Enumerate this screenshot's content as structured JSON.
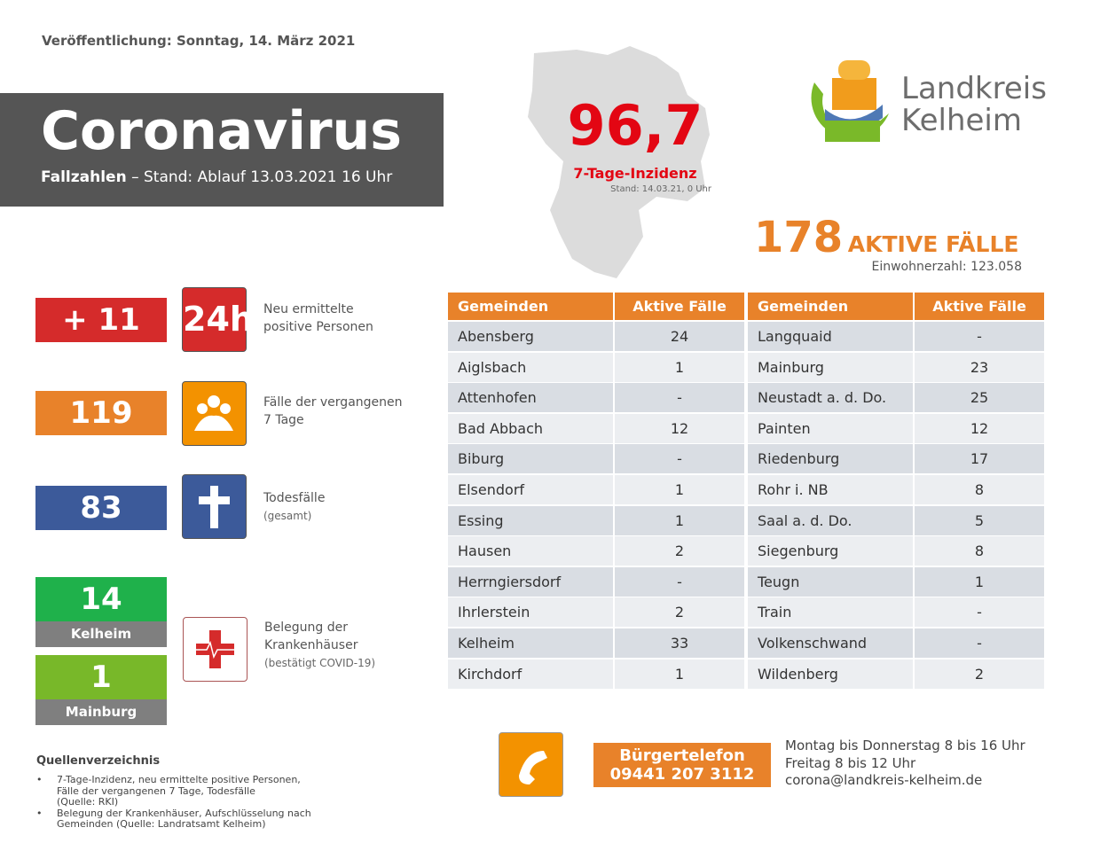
{
  "publication": "Veröffentlichung: Sonntag, 14. März 2021",
  "header": {
    "title": "Coronavirus",
    "subtitle_bold": "Fallzahlen",
    "subtitle": "– Stand: Ablauf 13.03.2021 16 Uhr"
  },
  "incidence": {
    "value": "96,7",
    "label": "7-Tage-Inzidenz",
    "stand": "Stand: 14.03.21, 0 Uhr"
  },
  "logo": {
    "line1": "Landkreis",
    "line2": "Kelheim"
  },
  "active": {
    "value": "178",
    "label": "AKTIVE FÄLLE",
    "population": "Einwohnerzahl: 123.058"
  },
  "stats": [
    {
      "value": "+ 11",
      "icon": "24h",
      "text": [
        "Neu ermittelte",
        "positive Personen"
      ]
    },
    {
      "value": "119",
      "text": [
        "Fälle der vergangenen",
        "7 Tage"
      ]
    },
    {
      "value": "83",
      "text": [
        "Todesfälle",
        "(gesamt)"
      ]
    }
  ],
  "hospital": {
    "sites": [
      {
        "value": "14",
        "label": "Kelheim"
      },
      {
        "value": "1",
        "label": "Mainburg"
      }
    ],
    "text": [
      "Belegung der",
      "Krankenhäuser",
      "(bestätigt COVID-19)"
    ]
  },
  "table": {
    "headers": [
      "Gemeinden",
      "Aktive Fälle",
      "Gemeinden",
      "Aktive Fälle"
    ],
    "rows": [
      [
        "Abensberg",
        "24",
        "Langquaid",
        "-"
      ],
      [
        "Aiglsbach",
        "1",
        "Mainburg",
        "23"
      ],
      [
        "Attenhofen",
        "-",
        "Neustadt a. d. Do.",
        "25"
      ],
      [
        "Bad Abbach",
        "12",
        "Painten",
        "12"
      ],
      [
        "Biburg",
        "-",
        "Riedenburg",
        "17"
      ],
      [
        "Elsendorf",
        "1",
        "Rohr i. NB",
        "8"
      ],
      [
        "Essing",
        "1",
        "Saal a. d. Do.",
        "5"
      ],
      [
        "Hausen",
        "2",
        "Siegenburg",
        "8"
      ],
      [
        "Herrngiersdorf",
        "-",
        "Teugn",
        "1"
      ],
      [
        "Ihrlerstein",
        "2",
        "Train",
        "-"
      ],
      [
        "Kelheim",
        "33",
        "Volkenschwand",
        "-"
      ],
      [
        "Kirchdorf",
        "1",
        "Wildenberg",
        "2"
      ]
    ]
  },
  "sources": {
    "title": "Quellenverzeichnis",
    "items": [
      [
        "7-Tage-Inzidenz, neu ermittelte positive Personen,",
        "Fälle der vergangenen 7 Tage, Todesfälle",
        "(Quelle: RKI)"
      ],
      [
        "Belegung der Krankenhäuser, Aufschlüsselung nach",
        "Gemeinden (Quelle: Landratsamt Kelheim)"
      ]
    ]
  },
  "phone": {
    "label": "Bürgertelefon",
    "number": "09441 207 3112",
    "info": [
      "Montag bis Donnerstag 8 bis 16 Uhr",
      "Freitag 8 bis 12 Uhr",
      "corona@landkreis-kelheim.de"
    ]
  }
}
